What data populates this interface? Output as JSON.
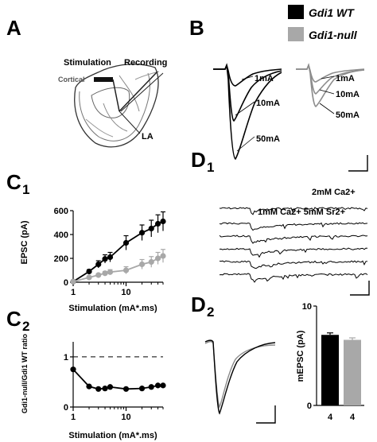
{
  "panels": {
    "a": "A",
    "b": "B",
    "c1_letter": "C",
    "c1_sub": "1",
    "c2_letter": "C",
    "c2_sub": "2",
    "d1_letter": "D",
    "d1_sub": "1",
    "d2_letter": "D",
    "d2_sub": "2"
  },
  "legend": {
    "wt": "Gdi1 WT",
    "null": "Gdi1-null",
    "wt_color": "#000000",
    "null_color": "#a8a8a8"
  },
  "panel_a": {
    "stimulation": "Stimulation",
    "recording": "Recording",
    "cortical": "Cortical",
    "la": "LA"
  },
  "panel_b": {
    "wt_labels": [
      "1mA",
      "10mA",
      "50mA"
    ],
    "null_labels": [
      "1mA",
      "10mA",
      "50mA"
    ]
  },
  "panel_d1": {
    "label_top": "2mM Ca2+",
    "label_bottom": "1mM Ca2+ 5mM Sr2+"
  },
  "chart_data": [
    {
      "id": "C1",
      "type": "line",
      "xscale": "log",
      "xlabel": "Stimulation (mA*.ms)",
      "ylabel": "EPSC (pA)",
      "xlim": [
        1,
        50
      ],
      "ylim": [
        0,
        600
      ],
      "xticks": [
        1,
        10
      ],
      "yticks": [
        0,
        200,
        400,
        600
      ],
      "x": [
        1,
        2,
        3,
        4,
        5,
        10,
        20,
        30,
        40,
        50
      ],
      "series": [
        {
          "name": "Gdi1 WT",
          "color": "#000000",
          "values": [
            5,
            90,
            150,
            195,
            210,
            330,
            415,
            450,
            490,
            510
          ],
          "errors": [
            10,
            15,
            30,
            35,
            40,
            60,
            65,
            70,
            75,
            80
          ]
        },
        {
          "name": "Gdi1-null",
          "color": "#a8a8a8",
          "values": [
            5,
            40,
            60,
            75,
            85,
            100,
            150,
            170,
            200,
            220
          ],
          "errors": [
            5,
            10,
            12,
            15,
            20,
            30,
            40,
            45,
            50,
            55
          ]
        }
      ]
    },
    {
      "id": "C2",
      "type": "line",
      "xscale": "log",
      "xlabel": "Stimulation (mA*.ms)",
      "ylabel": "Gdi1-null/Gdi1 WT ratio",
      "xlim": [
        1,
        50
      ],
      "ylim": [
        0,
        1.3
      ],
      "xticks": [
        1,
        10
      ],
      "yticks": [
        0,
        1
      ],
      "reference_line": 1,
      "x": [
        1,
        2,
        3,
        4,
        5,
        10,
        20,
        30,
        40,
        50
      ],
      "series": [
        {
          "name": "",
          "color": "#000000",
          "values": [
            0.75,
            0.41,
            0.36,
            0.37,
            0.4,
            0.36,
            0.37,
            0.4,
            0.43,
            0.43
          ]
        }
      ]
    },
    {
      "id": "D2",
      "type": "bar",
      "ylabel": "mEPSC (pA)",
      "ylim": [
        0,
        10
      ],
      "yticks": [
        0,
        10
      ],
      "categories": [
        "Gdi1 WT",
        "Gdi1-null"
      ],
      "values": [
        7.1,
        6.6
      ],
      "errors": [
        0.2,
        0.2
      ],
      "colors": [
        "#000000",
        "#a8a8a8"
      ],
      "n_labels": [
        "4",
        "4"
      ]
    }
  ]
}
